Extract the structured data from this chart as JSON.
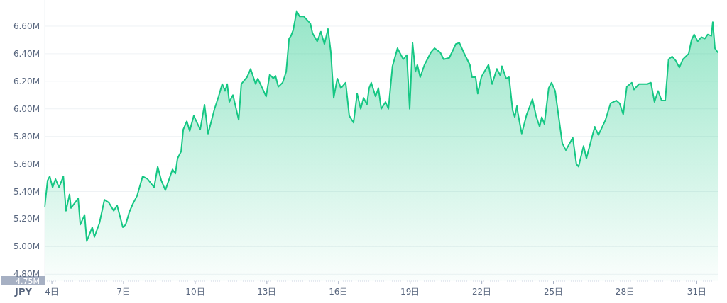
{
  "chart_data": {
    "type": "area",
    "ylabel": "JPY",
    "grid": "y",
    "xlim": [
      3.7,
      31.88
    ],
    "ylim": [
      4.75,
      6.79
    ],
    "xticks": [
      {
        "value": 4,
        "label": "4日"
      },
      {
        "value": 7,
        "label": "7日"
      },
      {
        "value": 10,
        "label": "10日"
      },
      {
        "value": 13,
        "label": "13日"
      },
      {
        "value": 16,
        "label": "16日"
      },
      {
        "value": 19,
        "label": "19日"
      },
      {
        "value": 22,
        "label": "22日"
      },
      {
        "value": 25,
        "label": "25日"
      },
      {
        "value": 28,
        "label": "28日"
      },
      {
        "value": 31,
        "label": "31日"
      }
    ],
    "yticks": [
      {
        "value": 4.75,
        "label": "4.75M"
      },
      {
        "value": 4.8,
        "label": "4.80M"
      },
      {
        "value": 5.0,
        "label": "5.00M"
      },
      {
        "value": 5.2,
        "label": "5.20M"
      },
      {
        "value": 5.4,
        "label": "5.40M"
      },
      {
        "value": 5.6,
        "label": "5.60M"
      },
      {
        "value": 5.8,
        "label": "5.80M"
      },
      {
        "value": 6.0,
        "label": "6.00M"
      },
      {
        "value": 6.2,
        "label": "6.20M"
      },
      {
        "value": 6.4,
        "label": "6.40M"
      },
      {
        "value": 6.6,
        "label": "6.60M"
      }
    ],
    "series": [
      {
        "color": "#16c784",
        "x": [
          3.7,
          3.82,
          3.91,
          4.03,
          4.15,
          4.3,
          4.48,
          4.59,
          4.74,
          4.8,
          5.1,
          5.19,
          5.37,
          5.46,
          5.69,
          5.78,
          5.99,
          6.2,
          6.38,
          6.59,
          6.73,
          6.97,
          7.09,
          7.24,
          7.39,
          7.57,
          7.8,
          8.01,
          8.28,
          8.43,
          8.58,
          8.75,
          9.05,
          9.17,
          9.26,
          9.41,
          9.5,
          9.65,
          9.77,
          9.94,
          10.21,
          10.39,
          10.54,
          10.81,
          10.98,
          11.13,
          11.25,
          11.34,
          11.43,
          11.58,
          11.82,
          11.93,
          12.17,
          12.32,
          12.53,
          12.62,
          12.97,
          13.12,
          13.27,
          13.36,
          13.48,
          13.66,
          13.81,
          13.93,
          14.01,
          14.1,
          14.25,
          14.37,
          14.55,
          14.82,
          14.91,
          15.11,
          15.26,
          15.41,
          15.56,
          15.68,
          15.8,
          15.95,
          16.1,
          16.3,
          16.45,
          16.63,
          16.78,
          16.93,
          17.05,
          17.19,
          17.28,
          17.37,
          17.55,
          17.67,
          17.79,
          17.97,
          18.09,
          18.26,
          18.47,
          18.71,
          18.86,
          18.98,
          19.1,
          19.22,
          19.3,
          19.42,
          19.6,
          19.87,
          20.02,
          20.26,
          20.4,
          20.64,
          20.91,
          21.06,
          21.24,
          21.5,
          21.59,
          21.74,
          21.83,
          21.98,
          22.04,
          22.28,
          22.43,
          22.63,
          22.78,
          22.84,
          23.02,
          23.14,
          23.29,
          23.38,
          23.47,
          23.52,
          23.67,
          23.88,
          23.97,
          24.12,
          24.27,
          24.42,
          24.51,
          24.62,
          24.8,
          24.92,
          25.07,
          25.37,
          25.52,
          25.81,
          25.96,
          26.05,
          26.26,
          26.38,
          26.59,
          26.73,
          26.88,
          27.18,
          27.39,
          27.63,
          27.77,
          27.92,
          28.07,
          28.28,
          28.37,
          28.58,
          28.93,
          29.08,
          29.23,
          29.38,
          29.53,
          29.68,
          29.82,
          29.97,
          30.12,
          30.27,
          30.42,
          30.66,
          30.78,
          30.89,
          31.04,
          31.19,
          31.34,
          31.46,
          31.61,
          31.67,
          31.76,
          31.88
        ],
        "values": [
          5.29,
          5.48,
          5.51,
          5.43,
          5.49,
          5.43,
          5.51,
          5.26,
          5.38,
          5.28,
          5.35,
          5.16,
          5.23,
          5.04,
          5.14,
          5.07,
          5.17,
          5.34,
          5.32,
          5.26,
          5.3,
          5.14,
          5.16,
          5.25,
          5.31,
          5.37,
          5.51,
          5.49,
          5.43,
          5.58,
          5.48,
          5.41,
          5.56,
          5.53,
          5.64,
          5.69,
          5.85,
          5.91,
          5.84,
          5.95,
          5.85,
          6.03,
          5.82,
          6.0,
          6.09,
          6.18,
          6.13,
          6.18,
          6.05,
          6.1,
          5.92,
          6.18,
          6.23,
          6.29,
          6.18,
          6.22,
          6.09,
          6.25,
          6.22,
          6.24,
          6.16,
          6.19,
          6.27,
          6.51,
          6.53,
          6.57,
          6.71,
          6.67,
          6.67,
          6.62,
          6.55,
          6.49,
          6.56,
          6.47,
          6.58,
          6.41,
          6.08,
          6.22,
          6.15,
          6.19,
          5.95,
          5.9,
          6.11,
          6.0,
          6.08,
          6.03,
          6.15,
          6.19,
          6.09,
          6.15,
          6.0,
          6.05,
          6.0,
          6.31,
          6.44,
          6.36,
          6.39,
          6.0,
          6.48,
          6.27,
          6.32,
          6.23,
          6.32,
          6.41,
          6.44,
          6.41,
          6.36,
          6.37,
          6.47,
          6.48,
          6.41,
          6.32,
          6.23,
          6.23,
          6.11,
          6.23,
          6.25,
          6.32,
          6.18,
          6.29,
          6.24,
          6.31,
          6.22,
          6.23,
          5.99,
          5.94,
          6.02,
          5.96,
          5.82,
          5.96,
          6.0,
          6.07,
          5.95,
          5.87,
          5.94,
          5.89,
          6.15,
          6.19,
          6.13,
          5.75,
          5.7,
          5.79,
          5.6,
          5.58,
          5.73,
          5.64,
          5.78,
          5.87,
          5.81,
          5.92,
          6.04,
          6.06,
          6.04,
          5.96,
          6.16,
          6.19,
          6.14,
          6.18,
          6.18,
          6.19,
          6.05,
          6.13,
          6.06,
          6.06,
          6.36,
          6.38,
          6.35,
          6.3,
          6.36,
          6.4,
          6.5,
          6.54,
          6.49,
          6.52,
          6.51,
          6.54,
          6.53,
          6.63,
          6.44,
          6.41
        ]
      }
    ]
  }
}
